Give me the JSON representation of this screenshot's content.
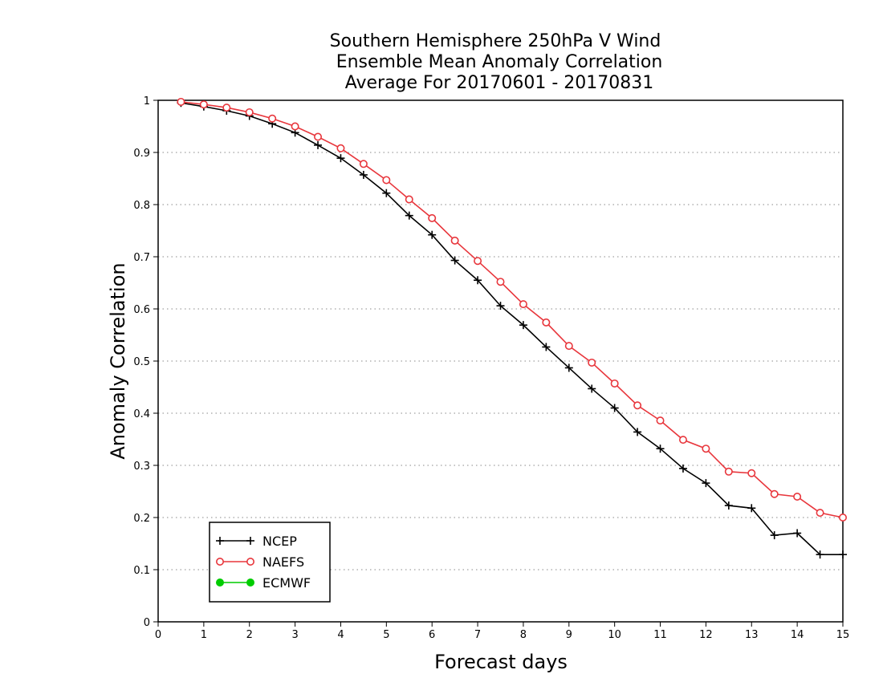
{
  "chart_data": {
    "type": "line",
    "title_lines": [
      "Southern Hemisphere 250hPa V Wind",
      "Ensemble Mean Anomaly Correlation",
      "Average For 20170601 - 20170831"
    ],
    "xlabel": "Forecast days",
    "ylabel": "Anomaly Correlation",
    "xlim": [
      0,
      15
    ],
    "ylim": [
      0,
      1
    ],
    "xticks": [
      "0",
      "1",
      "2",
      "3",
      "4",
      "5",
      "6",
      "7",
      "8",
      "9",
      "10",
      "11",
      "12",
      "13",
      "14",
      "15"
    ],
    "yticks": [
      "0",
      "0.1",
      "0.2",
      "0.3",
      "0.4",
      "0.5",
      "0.6",
      "0.7",
      "0.8",
      "0.9",
      "1"
    ],
    "grid": "horizontal-dotted",
    "legend_position": "bottom-left",
    "series": [
      {
        "name": "NCEP",
        "color": "#000000",
        "marker": "plus",
        "x": [
          0.5,
          1,
          1.5,
          2,
          2.5,
          3,
          3.5,
          4,
          4.5,
          5,
          5.5,
          6,
          6.5,
          7,
          7.5,
          8,
          8.5,
          9,
          9.5,
          10,
          10.5,
          11,
          11.5,
          12,
          12.5,
          13,
          13.5,
          14,
          14.5,
          15
        ],
        "y": [
          0.995,
          0.988,
          0.98,
          0.97,
          0.955,
          0.938,
          0.914,
          0.889,
          0.857,
          0.822,
          0.779,
          0.742,
          0.693,
          0.655,
          0.606,
          0.569,
          0.527,
          0.487,
          0.447,
          0.41,
          0.364,
          0.332,
          0.294,
          0.266,
          0.223,
          0.218,
          0.166,
          0.17,
          0.129,
          0.129
        ]
      },
      {
        "name": "NAEFS",
        "color": "#e8363c",
        "marker": "open-circle",
        "x": [
          0.5,
          1,
          1.5,
          2,
          2.5,
          3,
          3.5,
          4,
          4.5,
          5,
          5.5,
          6,
          6.5,
          7,
          7.5,
          8,
          8.5,
          9,
          9.5,
          10,
          10.5,
          11,
          11.5,
          12,
          12.5,
          13,
          13.5,
          14,
          14.5,
          15
        ],
        "y": [
          0.997,
          0.992,
          0.986,
          0.977,
          0.965,
          0.95,
          0.93,
          0.908,
          0.878,
          0.847,
          0.81,
          0.774,
          0.731,
          0.692,
          0.652,
          0.609,
          0.574,
          0.529,
          0.497,
          0.457,
          0.415,
          0.386,
          0.349,
          0.332,
          0.288,
          0.285,
          0.245,
          0.24,
          0.209,
          0.2
        ]
      },
      {
        "name": "ECMWF",
        "color": "#00cc00",
        "marker": "filled-circle",
        "x": [],
        "y": []
      }
    ]
  }
}
